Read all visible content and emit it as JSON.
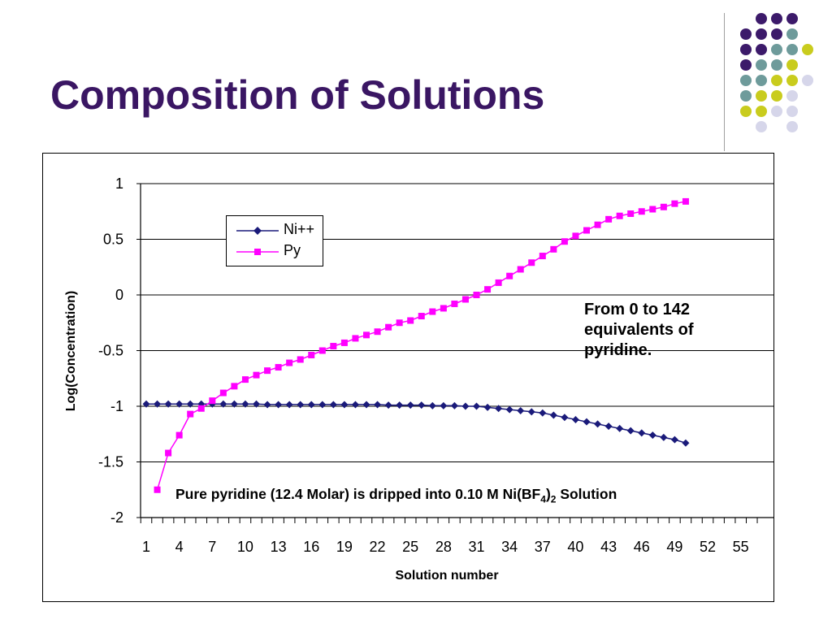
{
  "slide": {
    "title": "Composition of Solutions"
  },
  "decor": {
    "dot_colors": {
      "purple": "#3c1a6a",
      "teal": "#6e9b9b",
      "yellow": "#c9cc1e",
      "lavender": "#d6d6ea"
    }
  },
  "annotations": {
    "equivalents_lines": [
      "From 0 to 142",
      "equivalents of",
      "pyridine."
    ],
    "note_main": "Pure pyridine (12.4 Molar) is dripped into 0.10 M Ni(BF",
    "note_sub_a": "4",
    "note_close": ")",
    "note_sub_b": "2",
    "note_tail": " Solution"
  },
  "chart_data": {
    "type": "line",
    "xlabel": "Solution number",
    "ylabel": "Log(Concentration)",
    "ylim": [
      -2,
      1
    ],
    "yticks": [
      "1",
      "0.5",
      "0",
      "-0.5",
      "-1",
      "-1.5",
      "-2"
    ],
    "ytick_values": [
      1,
      0.5,
      0,
      -0.5,
      -1,
      -1.5,
      -2
    ],
    "xlim": [
      1,
      57
    ],
    "xtick_labels": [
      "1",
      "4",
      "7",
      "10",
      "13",
      "16",
      "19",
      "22",
      "25",
      "28",
      "31",
      "34",
      "37",
      "40",
      "43",
      "46",
      "49",
      "52",
      "55"
    ],
    "grid": "horizontal",
    "legend_position": "upper-left",
    "series": [
      {
        "name": "Ni++",
        "color": "#1a1a7a",
        "marker": "diamond",
        "x": [
          1,
          2,
          3,
          4,
          5,
          6,
          7,
          8,
          9,
          10,
          11,
          12,
          13,
          14,
          15,
          16,
          17,
          18,
          19,
          20,
          21,
          22,
          23,
          24,
          25,
          26,
          27,
          28,
          29,
          30,
          31,
          32,
          33,
          34,
          35,
          36,
          37,
          38,
          39,
          40,
          41,
          42,
          43,
          44,
          45,
          46,
          47,
          48,
          49,
          50
        ],
        "values": [
          -0.98,
          -0.98,
          -0.98,
          -0.98,
          -0.98,
          -0.98,
          -0.98,
          -0.98,
          -0.98,
          -0.98,
          -0.98,
          -0.985,
          -0.985,
          -0.985,
          -0.985,
          -0.985,
          -0.985,
          -0.985,
          -0.985,
          -0.985,
          -0.985,
          -0.985,
          -0.99,
          -0.99,
          -0.99,
          -0.99,
          -0.995,
          -0.995,
          -0.995,
          -1.0,
          -1.0,
          -1.01,
          -1.02,
          -1.03,
          -1.04,
          -1.05,
          -1.06,
          -1.08,
          -1.1,
          -1.12,
          -1.14,
          -1.16,
          -1.18,
          -1.2,
          -1.22,
          -1.24,
          -1.26,
          -1.28,
          -1.3,
          -1.33
        ]
      },
      {
        "name": "Py",
        "color": "#ff00ff",
        "marker": "square",
        "x": [
          2,
          3,
          4,
          5,
          6,
          7,
          8,
          9,
          10,
          11,
          12,
          13,
          14,
          15,
          16,
          17,
          18,
          19,
          20,
          21,
          22,
          23,
          24,
          25,
          26,
          27,
          28,
          29,
          30,
          31,
          32,
          33,
          34,
          35,
          36,
          37,
          38,
          39,
          40,
          41,
          42,
          43,
          44,
          45,
          46,
          47,
          48,
          49,
          50
        ],
        "values": [
          -1.75,
          -1.42,
          -1.26,
          -1.07,
          -1.02,
          -0.95,
          -0.88,
          -0.82,
          -0.76,
          -0.72,
          -0.68,
          -0.65,
          -0.61,
          -0.58,
          -0.54,
          -0.5,
          -0.46,
          -0.43,
          -0.39,
          -0.36,
          -0.33,
          -0.29,
          -0.25,
          -0.23,
          -0.19,
          -0.15,
          -0.12,
          -0.08,
          -0.04,
          0.0,
          0.05,
          0.11,
          0.17,
          0.23,
          0.29,
          0.35,
          0.41,
          0.48,
          0.53,
          0.58,
          0.63,
          0.68,
          0.71,
          0.73,
          0.75,
          0.77,
          0.79,
          0.82,
          0.84
        ]
      }
    ]
  }
}
